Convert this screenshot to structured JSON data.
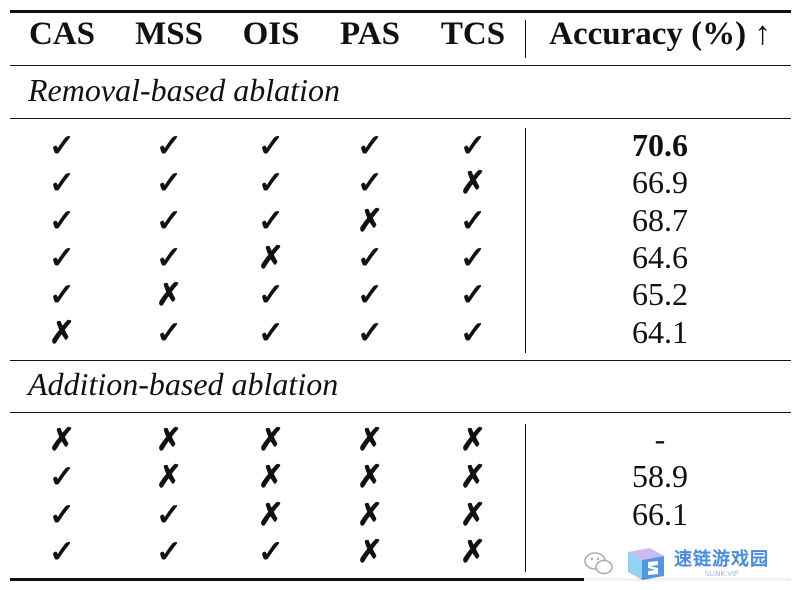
{
  "columns": [
    "CAS",
    "MSS",
    "OIS",
    "PAS",
    "TCS",
    "Accuracy (%) ↑"
  ],
  "sections": [
    {
      "title": "Removal-based ablation",
      "rows": [
        {
          "marks": [
            "✓",
            "✓",
            "✓",
            "✓",
            "✓"
          ],
          "accuracy": "70.6",
          "best": true
        },
        {
          "marks": [
            "✓",
            "✓",
            "✓",
            "✓",
            "✗"
          ],
          "accuracy": "66.9"
        },
        {
          "marks": [
            "✓",
            "✓",
            "✓",
            "✗",
            "✓"
          ],
          "accuracy": "68.7"
        },
        {
          "marks": [
            "✓",
            "✓",
            "✗",
            "✓",
            "✓"
          ],
          "accuracy": "64.6"
        },
        {
          "marks": [
            "✓",
            "✗",
            "✓",
            "✓",
            "✓"
          ],
          "accuracy": "65.2"
        },
        {
          "marks": [
            "✗",
            "✓",
            "✓",
            "✓",
            "✓"
          ],
          "accuracy": "64.1"
        }
      ]
    },
    {
      "title": "Addition-based ablation",
      "rows": [
        {
          "marks": [
            "✗",
            "✗",
            "✗",
            "✗",
            "✗"
          ],
          "accuracy": "-"
        },
        {
          "marks": [
            "✓",
            "✗",
            "✗",
            "✗",
            "✗"
          ],
          "accuracy": "58.9"
        },
        {
          "marks": [
            "✓",
            "✓",
            "✗",
            "✗",
            "✗"
          ],
          "accuracy": "66.1"
        },
        {
          "marks": [
            "✓",
            "✓",
            "✓",
            "✗",
            "✗"
          ],
          "accuracy": ""
        }
      ]
    }
  ],
  "watermark": {
    "title": "速链游戏园",
    "subtitle": "SLINK.VIP",
    "icon": "wechat-icon"
  }
}
